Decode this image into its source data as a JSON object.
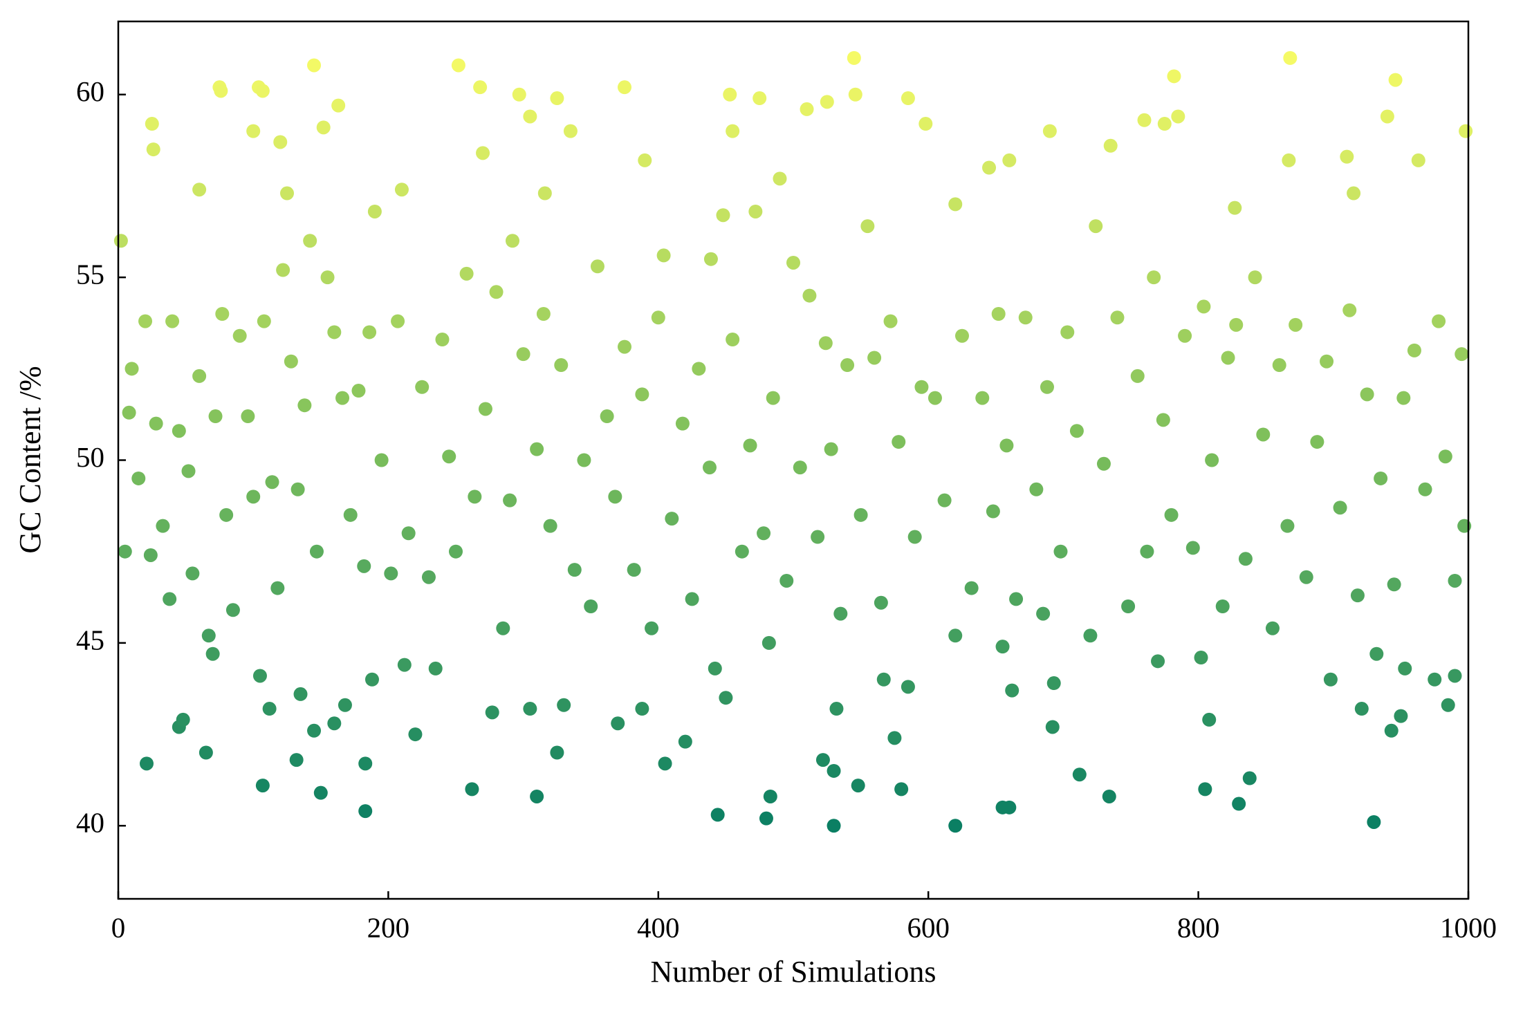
{
  "chart_data": {
    "type": "scatter",
    "xlabel": "Number of Simulations",
    "ylabel": "GC Content /%",
    "xlim": [
      0,
      1000
    ],
    "xticks": [
      0,
      200,
      400,
      600,
      800,
      1000
    ],
    "ylim": [
      38,
      62
    ],
    "yticks": [
      40,
      45,
      50,
      55,
      60
    ],
    "grid": false,
    "colormap": [
      "#0b7f63",
      "#7dbf5b",
      "#f5fa66"
    ],
    "x": [
      2,
      8,
      25,
      26,
      60,
      75,
      76,
      100,
      104,
      107,
      120,
      125,
      145,
      152,
      163,
      190,
      210,
      252,
      268,
      270,
      292,
      297,
      305,
      316,
      325,
      335,
      375,
      390,
      439,
      453,
      455,
      475,
      490,
      510,
      525,
      545,
      546,
      555,
      585,
      598,
      620,
      645,
      660,
      690,
      735,
      760,
      775,
      782,
      785,
      827,
      868,
      867,
      910,
      915,
      940,
      946,
      963,
      998,
      21,
      45,
      48,
      65,
      67,
      70,
      105,
      107,
      112,
      132,
      135,
      145,
      150,
      160,
      168,
      183,
      183,
      188,
      212,
      220,
      235,
      262,
      277,
      305,
      310,
      325,
      330,
      370,
      388,
      405,
      420,
      444,
      450,
      480,
      483,
      482,
      522,
      530,
      530,
      532,
      548,
      567,
      575,
      580,
      585,
      620,
      620,
      655,
      660,
      662,
      692,
      693,
      712,
      734,
      770,
      805,
      808,
      830,
      838,
      930,
      932,
      943,
      950,
      953,
      975,
      990,
      985,
      921,
      898,
      802,
      685,
      655,
      5,
      10,
      15,
      20,
      24,
      28,
      33,
      38,
      40,
      45,
      52,
      55,
      60,
      72,
      77,
      80,
      85,
      90,
      96,
      100,
      108,
      114,
      118,
      122,
      128,
      133,
      138,
      142,
      147,
      155,
      160,
      166,
      172,
      178,
      182,
      186,
      195,
      202,
      207,
      215,
      225,
      230,
      240,
      245,
      250,
      258,
      264,
      272,
      280,
      285,
      290,
      300,
      310,
      315,
      320,
      328,
      338,
      345,
      350,
      355,
      362,
      368,
      375,
      382,
      388,
      395,
      400,
      404,
      410,
      418,
      425,
      430,
      438,
      442,
      448,
      455,
      462,
      468,
      472,
      478,
      485,
      495,
      500,
      505,
      512,
      518,
      524,
      528,
      535,
      540,
      550,
      560,
      565,
      572,
      578,
      590,
      595,
      605,
      612,
      625,
      632,
      640,
      648,
      652,
      658,
      665,
      672,
      680,
      688,
      698,
      703,
      710,
      720,
      724,
      730,
      740,
      748,
      755,
      762,
      767,
      774,
      780,
      790,
      796,
      804,
      810,
      818,
      822,
      828,
      835,
      842,
      848,
      855,
      860,
      866,
      872,
      880,
      888,
      895,
      905,
      912,
      918,
      925,
      935,
      945,
      952,
      960,
      968,
      978,
      983,
      990,
      995,
      997
    ],
    "values": [
      56.0,
      51.3,
      59.2,
      58.5,
      57.4,
      60.2,
      60.1,
      59.0,
      60.2,
      60.1,
      58.7,
      57.3,
      60.8,
      59.1,
      59.7,
      56.8,
      57.4,
      60.8,
      60.2,
      58.4,
      56.0,
      60.0,
      59.4,
      57.3,
      59.9,
      59.0,
      60.2,
      58.2,
      55.5,
      60.0,
      59.0,
      59.9,
      57.7,
      59.6,
      59.8,
      61.0,
      60.0,
      56.4,
      59.9,
      59.2,
      57.0,
      58.0,
      58.2,
      59.0,
      58.6,
      59.3,
      59.2,
      60.5,
      59.4,
      56.9,
      61.0,
      58.2,
      58.3,
      57.3,
      59.4,
      60.4,
      58.2,
      59.0,
      41.7,
      42.7,
      42.9,
      42.0,
      45.2,
      44.7,
      44.1,
      41.1,
      43.2,
      41.8,
      43.6,
      42.6,
      40.9,
      42.8,
      43.3,
      40.4,
      41.7,
      44.0,
      44.4,
      42.5,
      44.3,
      41.0,
      43.1,
      43.2,
      40.8,
      42.0,
      43.3,
      42.8,
      43.2,
      41.7,
      42.3,
      40.3,
      43.5,
      40.2,
      40.8,
      45.0,
      41.8,
      40.0,
      41.5,
      43.2,
      41.1,
      44.0,
      42.4,
      41.0,
      43.8,
      40.0,
      45.2,
      40.5,
      40.5,
      43.7,
      42.7,
      43.9,
      41.4,
      40.8,
      44.5,
      41.0,
      42.9,
      40.6,
      41.3,
      40.1,
      44.7,
      42.6,
      43.0,
      44.3,
      44.0,
      44.1,
      43.3,
      43.2,
      44.0,
      44.6,
      45.8,
      44.9,
      47.5,
      52.5,
      49.5,
      53.8,
      47.4,
      51.0,
      48.2,
      46.2,
      53.8,
      50.8,
      49.7,
      46.9,
      52.3,
      51.2,
      54.0,
      48.5,
      45.9,
      53.4,
      51.2,
      49.0,
      53.8,
      49.4,
      46.5,
      55.2,
      52.7,
      49.2,
      51.5,
      56.0,
      47.5,
      55.0,
      53.5,
      51.7,
      48.5,
      51.9,
      47.1,
      53.5,
      50.0,
      46.9,
      53.8,
      48.0,
      52.0,
      46.8,
      53.3,
      50.1,
      47.5,
      55.1,
      49.0,
      51.4,
      54.6,
      45.4,
      48.9,
      52.9,
      50.3,
      54.0,
      48.2,
      52.6,
      47.0,
      50.0,
      46.0,
      55.3,
      51.2,
      49.0,
      53.1,
      47.0,
      51.8,
      45.4,
      53.9,
      55.6,
      48.4,
      51.0,
      46.2,
      52.5,
      49.8,
      44.3,
      56.7,
      53.3,
      47.5,
      50.4,
      56.8,
      48.0,
      51.7,
      46.7,
      55.4,
      49.8,
      54.5,
      47.9,
      53.2,
      50.3,
      45.8,
      52.6,
      48.5,
      52.8,
      46.1,
      53.8,
      50.5,
      47.9,
      52.0,
      51.7,
      48.9,
      53.4,
      46.5,
      51.7,
      48.6,
      54.0,
      50.4,
      46.2,
      53.9,
      49.2,
      52.0,
      47.5,
      53.5,
      50.8,
      45.2,
      56.4,
      49.9,
      53.9,
      46.0,
      52.3,
      47.5,
      55.0,
      51.1,
      48.5,
      53.4,
      47.6,
      54.2,
      50.0,
      46.0,
      52.8,
      53.7,
      47.3,
      55.0,
      50.7,
      45.4,
      52.6,
      48.2,
      53.7,
      46.8,
      50.5,
      52.7,
      48.7,
      54.1,
      46.3,
      51.8,
      49.5,
      46.6,
      51.7,
      53.0,
      49.2,
      53.8,
      50.1,
      46.7,
      52.9,
      48.2
    ]
  }
}
